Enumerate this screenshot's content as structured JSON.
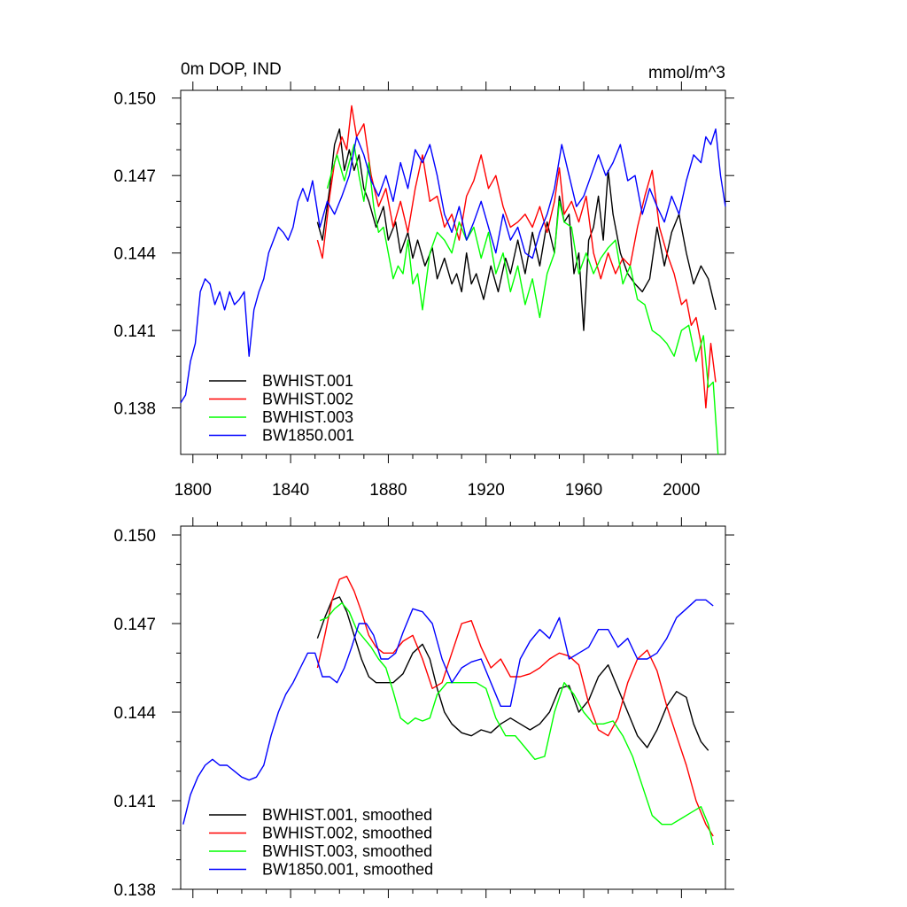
{
  "chart_data": [
    {
      "type": "line",
      "title": "0m DOP, IND",
      "units": "mmol/m^3",
      "xlabel": "",
      "ylabel": "",
      "xlim": [
        1795,
        2018
      ],
      "ylim": [
        0.1362,
        0.1503
      ],
      "xticks": [
        "1800",
        "1840",
        "1880",
        "1920",
        "1960",
        "2000"
      ],
      "yticks": [
        "0.150",
        "0.147",
        "0.144",
        "0.141",
        "0.138"
      ],
      "legend_position": "bottom-left",
      "series": [
        {
          "name": "BWHIST.001",
          "color": "#000000",
          "x": [
            1851,
            1853,
            1856,
            1858,
            1860,
            1862,
            1864,
            1866,
            1868,
            1870,
            1872,
            1875,
            1878,
            1880,
            1883,
            1885,
            1888,
            1890,
            1892,
            1895,
            1898,
            1900,
            1903,
            1906,
            1908,
            1910,
            1912,
            1914,
            1916,
            1919,
            1922,
            1925,
            1928,
            1930,
            1933,
            1936,
            1939,
            1942,
            1945,
            1948,
            1950,
            1952,
            1954,
            1956,
            1958,
            1960,
            1962,
            1964,
            1966,
            1968,
            1970,
            1972,
            1975,
            1978,
            1981,
            1984,
            1987,
            1990,
            1993,
            1996,
            1999,
            2002,
            2005,
            2008,
            2011,
            2014
          ],
          "values": [
            0.1452,
            0.1445,
            0.1465,
            0.1482,
            0.1488,
            0.1472,
            0.148,
            0.1472,
            0.1478,
            0.1465,
            0.146,
            0.145,
            0.1458,
            0.1445,
            0.1452,
            0.144,
            0.1448,
            0.1438,
            0.1445,
            0.1435,
            0.1442,
            0.143,
            0.1438,
            0.1428,
            0.1432,
            0.1425,
            0.144,
            0.1428,
            0.1432,
            0.1422,
            0.1435,
            0.1425,
            0.1438,
            0.1432,
            0.1445,
            0.1432,
            0.1448,
            0.1435,
            0.1452,
            0.144,
            0.1462,
            0.1452,
            0.1455,
            0.1432,
            0.144,
            0.141,
            0.1445,
            0.145,
            0.1462,
            0.1445,
            0.1472,
            0.1455,
            0.144,
            0.1432,
            0.1428,
            0.1425,
            0.143,
            0.145,
            0.1435,
            0.1448,
            0.1455,
            0.144,
            0.1428,
            0.1435,
            0.143,
            0.1418
          ]
        },
        {
          "name": "BWHIST.002",
          "color": "#ff0000",
          "x": [
            1851,
            1853,
            1856,
            1858,
            1861,
            1863,
            1865,
            1867,
            1870,
            1873,
            1876,
            1879,
            1882,
            1885,
            1888,
            1891,
            1894,
            1897,
            1900,
            1903,
            1906,
            1909,
            1912,
            1915,
            1918,
            1921,
            1924,
            1927,
            1930,
            1933,
            1936,
            1939,
            1942,
            1945,
            1948,
            1950,
            1952,
            1955,
            1958,
            1961,
            1964,
            1967,
            1970,
            1973,
            1976,
            1979,
            1982,
            1985,
            1988,
            1991,
            1994,
            1997,
            2000,
            2002,
            2004,
            2006,
            2008,
            2010,
            2012,
            2014
          ],
          "values": [
            0.1445,
            0.1438,
            0.1462,
            0.1475,
            0.1485,
            0.148,
            0.1497,
            0.1485,
            0.149,
            0.147,
            0.1458,
            0.1465,
            0.145,
            0.146,
            0.1448,
            0.1465,
            0.1478,
            0.146,
            0.1462,
            0.145,
            0.1455,
            0.1445,
            0.1462,
            0.1468,
            0.1478,
            0.1465,
            0.147,
            0.1458,
            0.145,
            0.1452,
            0.1455,
            0.145,
            0.1458,
            0.1448,
            0.146,
            0.1473,
            0.1455,
            0.146,
            0.1452,
            0.1462,
            0.144,
            0.143,
            0.144,
            0.1432,
            0.1438,
            0.1435,
            0.145,
            0.1462,
            0.1472,
            0.145,
            0.144,
            0.1432,
            0.142,
            0.1422,
            0.1412,
            0.1415,
            0.1405,
            0.138,
            0.1405,
            0.139
          ]
        },
        {
          "name": "BWHIST.003",
          "color": "#00ff00",
          "x": [
            1855,
            1857,
            1859,
            1862,
            1864,
            1866,
            1868,
            1870,
            1872,
            1874,
            1876,
            1878,
            1880,
            1882,
            1884,
            1886,
            1888,
            1890,
            1892,
            1894,
            1897,
            1900,
            1903,
            1906,
            1909,
            1912,
            1915,
            1918,
            1921,
            1924,
            1927,
            1930,
            1933,
            1936,
            1939,
            1942,
            1945,
            1948,
            1950,
            1952,
            1955,
            1958,
            1961,
            1964,
            1967,
            1970,
            1973,
            1976,
            1979,
            1982,
            1985,
            1988,
            1991,
            1994,
            1997,
            2000,
            2003,
            2006,
            2009,
            2011,
            2013,
            2015
          ],
          "values": [
            0.1465,
            0.1472,
            0.1478,
            0.1468,
            0.1475,
            0.1482,
            0.147,
            0.146,
            0.1475,
            0.1458,
            0.1448,
            0.145,
            0.144,
            0.143,
            0.1435,
            0.1432,
            0.1445,
            0.1428,
            0.1432,
            0.1418,
            0.144,
            0.1448,
            0.1445,
            0.144,
            0.1452,
            0.1445,
            0.145,
            0.1438,
            0.1448,
            0.1432,
            0.144,
            0.1425,
            0.1435,
            0.142,
            0.143,
            0.1415,
            0.1432,
            0.144,
            0.146,
            0.1452,
            0.145,
            0.1432,
            0.144,
            0.1432,
            0.1438,
            0.1442,
            0.1445,
            0.1428,
            0.1435,
            0.1422,
            0.142,
            0.141,
            0.1408,
            0.1405,
            0.14,
            0.141,
            0.1412,
            0.1398,
            0.1408,
            0.1388,
            0.139,
            0.1362
          ]
        },
        {
          "name": "BW1850.001",
          "color": "#0000ff",
          "x": [
            1795,
            1797,
            1799,
            1801,
            1803,
            1805,
            1807,
            1809,
            1811,
            1813,
            1815,
            1817,
            1819,
            1821,
            1823,
            1825,
            1827,
            1829,
            1831,
            1833,
            1835,
            1837,
            1839,
            1841,
            1843,
            1845,
            1847,
            1849,
            1852,
            1855,
            1858,
            1861,
            1864,
            1867,
            1870,
            1873,
            1876,
            1879,
            1882,
            1885,
            1888,
            1891,
            1894,
            1897,
            1900,
            1903,
            1906,
            1909,
            1912,
            1915,
            1918,
            1921,
            1924,
            1927,
            1930,
            1933,
            1936,
            1939,
            1942,
            1945,
            1948,
            1951,
            1954,
            1957,
            1960,
            1963,
            1966,
            1969,
            1972,
            1975,
            1978,
            1981,
            1984,
            1987,
            1990,
            1993,
            1996,
            1999,
            2002,
            2005,
            2008,
            2010,
            2012,
            2014,
            2016,
            2018
          ],
          "values": [
            0.1382,
            0.1385,
            0.1398,
            0.1405,
            0.1425,
            0.143,
            0.1428,
            0.142,
            0.1425,
            0.1418,
            0.1425,
            0.142,
            0.1422,
            0.1425,
            0.14,
            0.1418,
            0.1425,
            0.143,
            0.144,
            0.1445,
            0.145,
            0.1448,
            0.1445,
            0.145,
            0.146,
            0.1465,
            0.146,
            0.1468,
            0.145,
            0.146,
            0.1455,
            0.1462,
            0.147,
            0.1485,
            0.1478,
            0.1468,
            0.1462,
            0.147,
            0.146,
            0.1475,
            0.1465,
            0.148,
            0.1475,
            0.1482,
            0.147,
            0.1455,
            0.1448,
            0.1458,
            0.1445,
            0.1452,
            0.146,
            0.145,
            0.144,
            0.1455,
            0.1445,
            0.145,
            0.144,
            0.1438,
            0.1448,
            0.1455,
            0.1465,
            0.1482,
            0.147,
            0.1458,
            0.1462,
            0.147,
            0.1478,
            0.147,
            0.1475,
            0.1482,
            0.1468,
            0.147,
            0.1455,
            0.1465,
            0.1458,
            0.1452,
            0.1462,
            0.1455,
            0.1468,
            0.1478,
            0.1475,
            0.1485,
            0.1482,
            0.1488,
            0.147,
            0.1458
          ]
        }
      ]
    },
    {
      "type": "line",
      "title": "",
      "xlabel": "",
      "ylabel": "",
      "xlim": [
        1795,
        2018
      ],
      "ylim": [
        0.138,
        0.1503
      ],
      "xticks": [],
      "yticks": [
        "0.150",
        "0.147",
        "0.144",
        "0.141",
        "0.138"
      ],
      "legend_position": "bottom-left",
      "series": [
        {
          "name": "BWHIST.001, smoothed",
          "color": "#000000",
          "x": [
            1851,
            1854,
            1857,
            1860,
            1863,
            1866,
            1869,
            1872,
            1875,
            1878,
            1882,
            1886,
            1890,
            1894,
            1897,
            1900,
            1903,
            1906,
            1910,
            1914,
            1918,
            1922,
            1926,
            1930,
            1934,
            1938,
            1942,
            1946,
            1950,
            1954,
            1958,
            1962,
            1966,
            1970,
            1974,
            1978,
            1982,
            1986,
            1990,
            1994,
            1998,
            2002,
            2005,
            2008,
            2011
          ],
          "values": [
            0.1465,
            0.1472,
            0.1478,
            0.1479,
            0.1474,
            0.1466,
            0.1458,
            0.1452,
            0.145,
            0.145,
            0.145,
            0.1453,
            0.146,
            0.1463,
            0.1458,
            0.1448,
            0.144,
            0.1436,
            0.1433,
            0.1432,
            0.1434,
            0.1433,
            0.1436,
            0.1438,
            0.1436,
            0.1434,
            0.1436,
            0.144,
            0.1448,
            0.1449,
            0.144,
            0.1444,
            0.1452,
            0.1456,
            0.1448,
            0.144,
            0.1432,
            0.1428,
            0.1434,
            0.1442,
            0.1447,
            0.1445,
            0.1436,
            0.143,
            0.1427
          ]
        },
        {
          "name": "BWHIST.002, smoothed",
          "color": "#ff0000",
          "x": [
            1851,
            1854,
            1857,
            1860,
            1863,
            1866,
            1869,
            1872,
            1875,
            1878,
            1882,
            1886,
            1890,
            1894,
            1898,
            1902,
            1906,
            1910,
            1914,
            1918,
            1922,
            1926,
            1930,
            1934,
            1938,
            1942,
            1946,
            1950,
            1954,
            1958,
            1962,
            1966,
            1970,
            1974,
            1978,
            1982,
            1986,
            1990,
            1994,
            1998,
            2002,
            2006,
            2010,
            2013
          ],
          "values": [
            0.1455,
            0.1466,
            0.1478,
            0.1485,
            0.1486,
            0.1481,
            0.1474,
            0.1466,
            0.1462,
            0.146,
            0.146,
            0.1464,
            0.1466,
            0.1458,
            0.1448,
            0.145,
            0.146,
            0.147,
            0.1471,
            0.1462,
            0.1455,
            0.1458,
            0.1452,
            0.1452,
            0.1453,
            0.1455,
            0.1458,
            0.146,
            0.1459,
            0.1456,
            0.1443,
            0.1434,
            0.1432,
            0.1438,
            0.145,
            0.1458,
            0.1461,
            0.1454,
            0.1442,
            0.1432,
            0.1422,
            0.141,
            0.1402,
            0.1398
          ]
        },
        {
          "name": "BWHIST.003, smoothed",
          "color": "#00ff00",
          "x": [
            1852,
            1855,
            1858,
            1861,
            1864,
            1867,
            1870,
            1873,
            1876,
            1879,
            1882,
            1885,
            1888,
            1891,
            1894,
            1897,
            1900,
            1904,
            1908,
            1912,
            1916,
            1920,
            1924,
            1928,
            1932,
            1936,
            1940,
            1944,
            1948,
            1952,
            1956,
            1960,
            1964,
            1968,
            1972,
            1976,
            1980,
            1984,
            1988,
            1992,
            1996,
            2000,
            2004,
            2008,
            2011,
            2013
          ],
          "values": [
            0.1471,
            0.1472,
            0.1475,
            0.1477,
            0.1474,
            0.1468,
            0.1465,
            0.1462,
            0.1458,
            0.1455,
            0.1447,
            0.1438,
            0.1436,
            0.1438,
            0.1437,
            0.1438,
            0.1446,
            0.145,
            0.145,
            0.145,
            0.145,
            0.1448,
            0.1438,
            0.1432,
            0.1432,
            0.1428,
            0.1424,
            0.1425,
            0.144,
            0.145,
            0.1446,
            0.144,
            0.1436,
            0.1436,
            0.1437,
            0.1432,
            0.1425,
            0.1415,
            0.1405,
            0.1402,
            0.1402,
            0.1404,
            0.1406,
            0.1408,
            0.1402,
            0.1395
          ]
        },
        {
          "name": "BW1850.001, smoothed",
          "color": "#0000ff",
          "x": [
            1796,
            1799,
            1802,
            1805,
            1808,
            1811,
            1814,
            1817,
            1820,
            1823,
            1826,
            1829,
            1832,
            1835,
            1838,
            1841,
            1844,
            1847,
            1850,
            1853,
            1856,
            1859,
            1862,
            1865,
            1868,
            1871,
            1874,
            1877,
            1880,
            1883,
            1886,
            1890,
            1894,
            1898,
            1902,
            1906,
            1910,
            1914,
            1918,
            1922,
            1926,
            1930,
            1934,
            1938,
            1942,
            1946,
            1950,
            1954,
            1958,
            1962,
            1966,
            1970,
            1974,
            1978,
            1982,
            1986,
            1990,
            1994,
            1998,
            2002,
            2006,
            2010,
            2013
          ],
          "values": [
            0.1402,
            0.1412,
            0.1418,
            0.1422,
            0.1424,
            0.1422,
            0.1422,
            0.142,
            0.1418,
            0.1417,
            0.1418,
            0.1422,
            0.1432,
            0.144,
            0.1446,
            0.145,
            0.1455,
            0.146,
            0.146,
            0.1452,
            0.1452,
            0.145,
            0.1455,
            0.1462,
            0.147,
            0.147,
            0.1466,
            0.1458,
            0.1458,
            0.146,
            0.1467,
            0.1475,
            0.1474,
            0.147,
            0.1458,
            0.145,
            0.1455,
            0.1457,
            0.1458,
            0.145,
            0.1442,
            0.1442,
            0.1458,
            0.1464,
            0.1468,
            0.1465,
            0.1472,
            0.1458,
            0.146,
            0.1462,
            0.1468,
            0.1468,
            0.1462,
            0.1465,
            0.1458,
            0.1458,
            0.146,
            0.1465,
            0.1472,
            0.1475,
            0.1478,
            0.1478,
            0.1476
          ]
        }
      ]
    }
  ]
}
